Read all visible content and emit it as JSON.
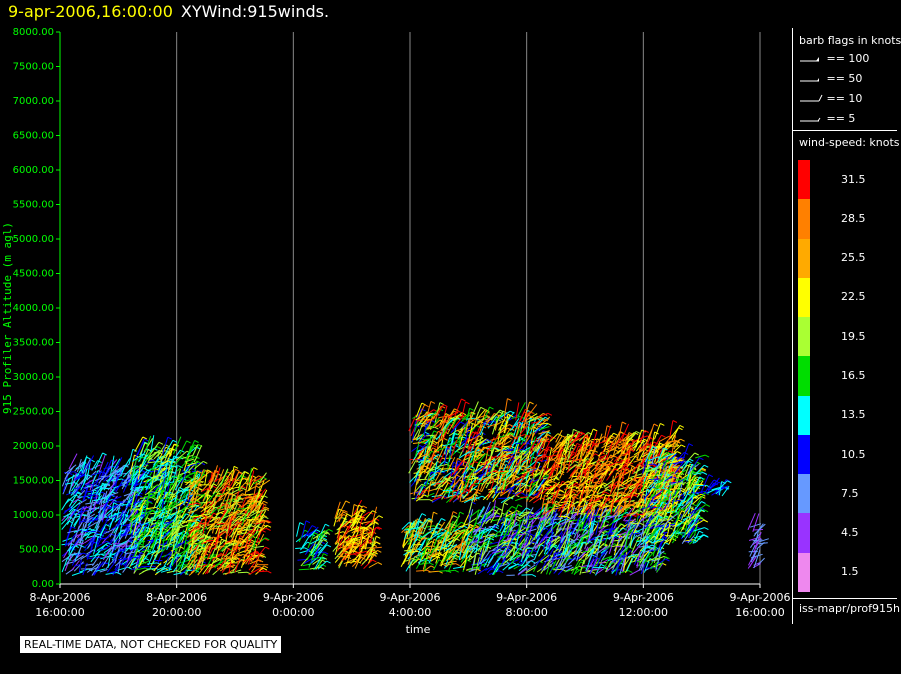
{
  "header": {
    "date": "9-apr-2006,16:00:00",
    "name": "XYWind:915winds."
  },
  "legend": {
    "barb_title": "barb flags in knots",
    "flags": [
      "== 100",
      "== 50",
      "== 10",
      "== 5"
    ],
    "ws_title": "wind-speed: knots",
    "bins": [
      {
        "label": "31.5",
        "color": "#ff0000"
      },
      {
        "label": "28.5",
        "color": "#ff8000"
      },
      {
        "label": "25.5",
        "color": "#ffaa00"
      },
      {
        "label": "22.5",
        "color": "#ffff00"
      },
      {
        "label": "19.5",
        "color": "#aaff33"
      },
      {
        "label": "16.5",
        "color": "#00dd00"
      },
      {
        "label": "13.5",
        "color": "#00ffff"
      },
      {
        "label": "10.5",
        "color": "#0000ff"
      },
      {
        "label": "7.5",
        "color": "#6699ff"
      },
      {
        "label": "4.5",
        "color": "#9933ff"
      },
      {
        "label": "1.5",
        "color": "#ee88ee"
      }
    ],
    "source": "iss-mapr/prof915h"
  },
  "notice": "REAL-TIME DATA, NOT CHECKED FOR QUALITY",
  "chart_data": {
    "type": "scatter",
    "ylabel": "915 Profiler Altitude (m agl)",
    "xlabel": "time",
    "ylim": [
      0,
      8000
    ],
    "xlim_hours": [
      0,
      24
    ],
    "yticks": [
      "0.00",
      "500.00",
      "1000.00",
      "1500.00",
      "2000.00",
      "2500.00",
      "3000.00",
      "3500.00",
      "4000.00",
      "4500.00",
      "5000.00",
      "5500.00",
      "6000.00",
      "6500.00",
      "7000.00",
      "7500.00",
      "8000.00"
    ],
    "xticks": [
      {
        "date": "8-Apr-2006",
        "time": "16:00:00",
        "hour": 0
      },
      {
        "date": "8-Apr-2006",
        "time": "20:00:00",
        "hour": 4
      },
      {
        "date": "9-Apr-2006",
        "time": "0:00:00",
        "hour": 8
      },
      {
        "date": "9-Apr-2006",
        "time": "4:00:00",
        "hour": 12
      },
      {
        "date": "9-Apr-2006",
        "time": "8:00:00",
        "hour": 16
      },
      {
        "date": "9-Apr-2006",
        "time": "12:00:00",
        "hour": 20
      },
      {
        "date": "9-Apr-2006",
        "time": "16:00:00",
        "hour": 24
      }
    ],
    "grid": "vertical",
    "regions": [
      {
        "t0": 0.1,
        "t1": 2.6,
        "h0": 150,
        "h1": 1650,
        "v0": 5,
        "v1": 15
      },
      {
        "t0": 2.4,
        "t1": 4.6,
        "h0": 150,
        "h1": 1900,
        "v0": 11,
        "v1": 22
      },
      {
        "t0": 4.4,
        "t1": 6.8,
        "h0": 150,
        "h1": 1500,
        "v0": 17,
        "v1": 33
      },
      {
        "t0": 8.1,
        "t1": 8.9,
        "h0": 200,
        "h1": 700,
        "v0": 10,
        "v1": 20
      },
      {
        "t0": 9.4,
        "t1": 10.7,
        "h0": 250,
        "h1": 1000,
        "v0": 20,
        "v1": 33
      },
      {
        "t0": 11.7,
        "t1": 14.0,
        "h0": 200,
        "h1": 800,
        "v0": 12,
        "v1": 28
      },
      {
        "t0": 12.0,
        "t1": 16.5,
        "h0": 1200,
        "h1": 2400,
        "v0": 10,
        "v1": 33
      },
      {
        "t0": 14.0,
        "t1": 20.5,
        "h0": 150,
        "h1": 1000,
        "v0": 4,
        "v1": 22
      },
      {
        "t0": 16.5,
        "t1": 21.0,
        "h0": 1000,
        "h1": 2100,
        "v0": 20,
        "v1": 33
      },
      {
        "t0": 20.0,
        "t1": 21.8,
        "h0": 600,
        "h1": 1800,
        "v0": 8,
        "v1": 25
      },
      {
        "t0": 22.0,
        "t1": 22.7,
        "h0": 1300,
        "h1": 1400,
        "v0": 11,
        "v1": 14
      },
      {
        "t0": 23.6,
        "t1": 23.9,
        "h0": 200,
        "h1": 800,
        "v0": 4,
        "v1": 9
      }
    ]
  }
}
